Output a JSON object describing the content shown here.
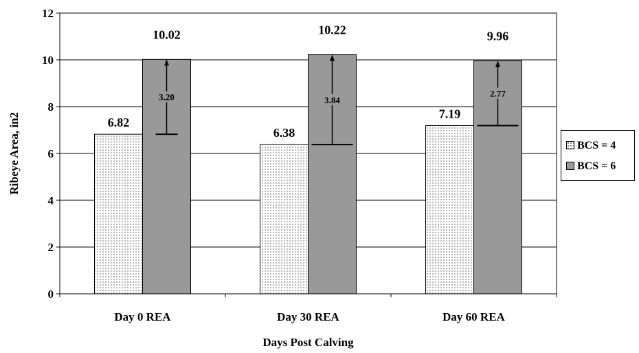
{
  "chart_data": {
    "type": "bar",
    "categories": [
      "Day 0 REA",
      "Day 30 REA",
      "Day 60 REA"
    ],
    "series": [
      {
        "name": "BCS = 4",
        "values": [
          6.82,
          6.38,
          7.19
        ],
        "labels": [
          "6.82",
          "6.38",
          "7.19"
        ],
        "fill": "dotted"
      },
      {
        "name": "BCS = 6",
        "values": [
          10.02,
          10.22,
          9.96
        ],
        "labels": [
          "10.02",
          "10.22",
          "9.96"
        ],
        "fill": "#999999"
      }
    ],
    "differences": [
      {
        "category": "Day 0 REA",
        "from": 6.82,
        "to": 10.02,
        "label": "3.20"
      },
      {
        "category": "Day 30 REA",
        "from": 6.38,
        "to": 10.22,
        "label": "3.84"
      },
      {
        "category": "Day 60 REA",
        "from": 7.19,
        "to": 9.96,
        "label": "2.77"
      }
    ],
    "ylabel": "Ribeye Area, in2",
    "xlabel": "Days Post Calving",
    "ylim": [
      0,
      12
    ],
    "yticks": [
      "0",
      "2",
      "4",
      "6",
      "8",
      "10",
      "12"
    ],
    "grid": true,
    "legend_position": "right"
  },
  "colors": {
    "bcs6": "#999999",
    "bcs4_dots": "#555555",
    "grid": "#000000"
  }
}
